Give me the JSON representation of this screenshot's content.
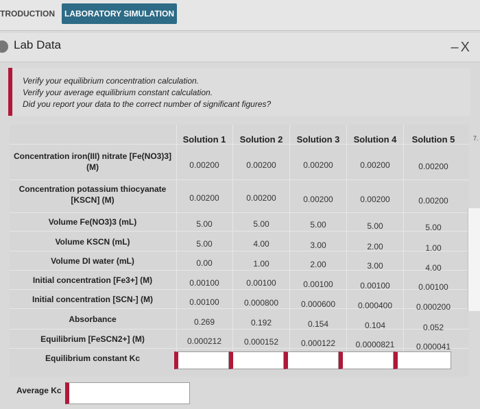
{
  "tabs": {
    "intro": "TRODUCTION",
    "lab": "LABORATORY SIMULATION"
  },
  "panel": {
    "title": "Lab Data",
    "minimize": "–",
    "close": "X"
  },
  "instructions": [
    "Verify your equilibrium concentration calculation.",
    "Verify your average equilibrium constant calculation.",
    "Did you report your data to the correct number of significant figures?"
  ],
  "table": {
    "headers": [
      "Solution 1",
      "Solution 2",
      "Solution 3",
      "Solution 4",
      "Solution 5"
    ],
    "rows": [
      {
        "label": "Concentration iron(III) nitrate [Fe(NO3)3] (M)",
        "values": [
          "0.00200",
          "0.00200",
          "0.00200",
          "0.00200",
          "0.00200"
        ]
      },
      {
        "label": "Concentration potassium thiocyanate [KSCN] (M)",
        "values": [
          "0.00200",
          "0.00200",
          "0.00200",
          "0.00200",
          "0.00200"
        ]
      },
      {
        "label": "Volume Fe(NO3)3 (mL)",
        "values": [
          "5.00",
          "5.00",
          "5.00",
          "5.00",
          "5.00"
        ]
      },
      {
        "label": "Volume KSCN (mL)",
        "values": [
          "5.00",
          "4.00",
          "3.00",
          "2.00",
          "1.00"
        ]
      },
      {
        "label": "Volume DI water (mL)",
        "values": [
          "0.00",
          "1.00",
          "2.00",
          "3.00",
          "4.00"
        ]
      },
      {
        "label": "Initial concentration [Fe3+] (M)",
        "values": [
          "0.00100",
          "0.00100",
          "0.00100",
          "0.00100",
          "0.00100"
        ]
      },
      {
        "label": "Initial concentration [SCN-] (M)",
        "values": [
          "0.00100",
          "0.000800",
          "0.000600",
          "0.000400",
          "0.000200"
        ]
      },
      {
        "label": "Absorbance",
        "values": [
          "0.269",
          "0.192",
          "0.154",
          "0.104",
          "0.052"
        ]
      },
      {
        "label": "Equilibrium [FeSCN2+] (M)",
        "values": [
          "0.000212",
          "0.000152",
          "0.000122",
          "0.0000821",
          "0.000041"
        ]
      },
      {
        "label": "Equilibrium constant Kc",
        "values": [
          "",
          "",
          "",
          "",
          ""
        ]
      }
    ]
  },
  "average": {
    "label": "Average Kc",
    "value": ""
  },
  "edge_text": "7.",
  "colors": {
    "accent": "#b0183a",
    "tab": "#2d6b86"
  }
}
